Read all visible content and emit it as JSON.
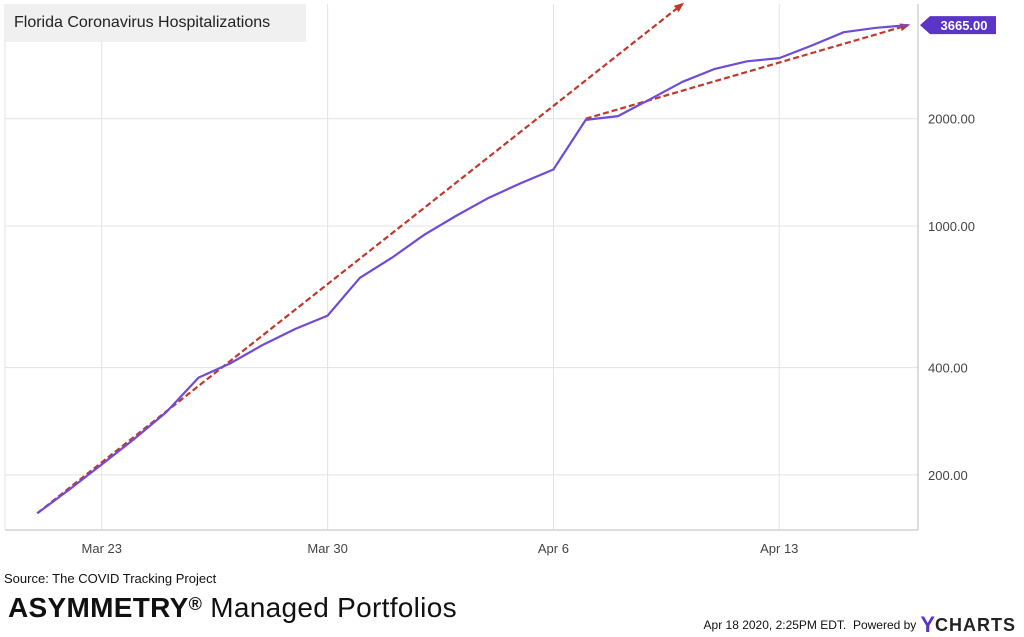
{
  "chart_data": {
    "type": "line",
    "title": "Florida Coronavirus Hospitalizations",
    "yscale": "log",
    "ylim": [
      140,
      4200
    ],
    "x_start": "Mar 20",
    "x_end": "Apr 18",
    "x_ticks": [
      {
        "label": "Mar 23",
        "day": 3
      },
      {
        "label": "Mar 30",
        "day": 10
      },
      {
        "label": "Apr 6",
        "day": 17
      },
      {
        "label": "Apr 13",
        "day": 24
      }
    ],
    "y_ticks": [
      {
        "label": "200.00",
        "value": 200
      },
      {
        "label": "400.00",
        "value": 400
      },
      {
        "label": "1000.00",
        "value": 1000
      },
      {
        "label": "2000.00",
        "value": 2000
      }
    ],
    "grid": true,
    "series": [
      {
        "color": "#6f4bd8",
        "points": [
          [
            1,
            156
          ],
          [
            2,
            182
          ],
          [
            3,
            214
          ],
          [
            4,
            252
          ],
          [
            5,
            300
          ],
          [
            6,
            375
          ],
          [
            7,
            412
          ],
          [
            8,
            464
          ],
          [
            9,
            514
          ],
          [
            10,
            560
          ],
          [
            11,
            715
          ],
          [
            12,
            815
          ],
          [
            13,
            945
          ],
          [
            14,
            1070
          ],
          [
            15,
            1200
          ],
          [
            16,
            1320
          ],
          [
            17,
            1440
          ],
          [
            18,
            1985
          ],
          [
            19,
            2035
          ],
          [
            20,
            2270
          ],
          [
            21,
            2540
          ],
          [
            22,
            2760
          ],
          [
            23,
            2900
          ],
          [
            24,
            2960
          ],
          [
            25,
            3210
          ],
          [
            26,
            3500
          ],
          [
            27,
            3600
          ],
          [
            28,
            3665
          ]
        ]
      }
    ],
    "trendlines": [
      {
        "color": "#c0392b",
        "style": "dashed",
        "from": [
          1,
          156
        ],
        "to": [
          21,
          4200
        ]
      },
      {
        "color": "#c0392b",
        "style": "dashed",
        "from": [
          18,
          2000
        ],
        "to": [
          28,
          3665
        ]
      }
    ],
    "last_value": {
      "label": "3665.00",
      "value": 3665,
      "color": "#5b35c8"
    }
  },
  "footer": {
    "source": "Source: The COVID Tracking Project",
    "brand_main": "ASYMMETRY",
    "brand_reg": "®",
    "brand_rest": " Managed Portfolios",
    "timestamp": "Apr 18 2020, 2:25PM EDT.",
    "powered_by": "Powered by",
    "logo_y": "Y",
    "logo_charts": "CHARTS"
  }
}
